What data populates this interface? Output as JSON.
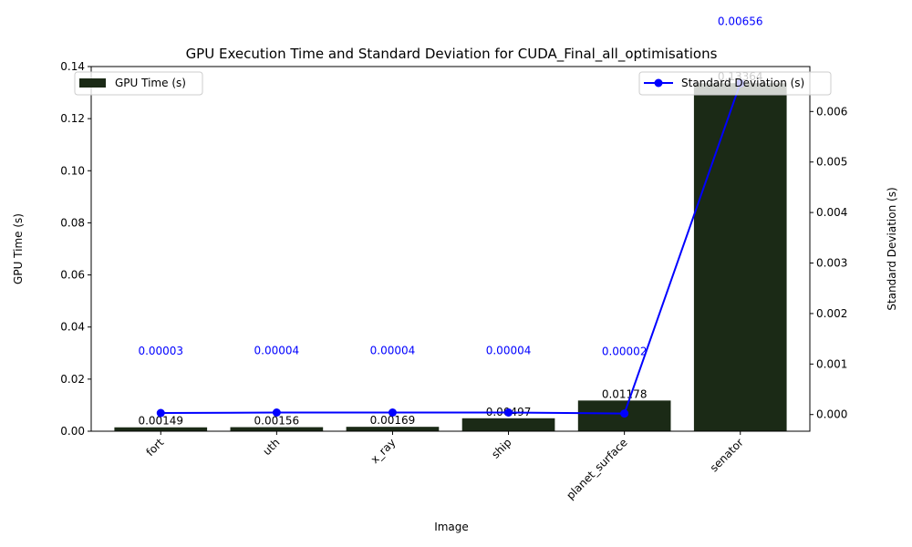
{
  "chart_data": {
    "type": "bar",
    "title": "GPU Execution Time and Standard Deviation for CUDA_Final_all_optimisations",
    "xlabel": "Image",
    "ylabel": "GPU Time (s)",
    "y2label": "Standard Deviation (s)",
    "categories": [
      "fort",
      "uth",
      "x_ray",
      "ship",
      "planet_surface",
      "senator"
    ],
    "ylim": [
      0,
      0.14
    ],
    "y2lim": [
      -0.00033,
      0.00689
    ],
    "yticks": [
      "0.00",
      "0.02",
      "0.04",
      "0.06",
      "0.08",
      "0.10",
      "0.12",
      "0.14"
    ],
    "y2ticks": [
      "0.000",
      "0.001",
      "0.002",
      "0.003",
      "0.004",
      "0.005",
      "0.006"
    ],
    "series": [
      {
        "name": "GPU Time (s)",
        "kind": "bar",
        "axis": "left",
        "color": "#1b2a16",
        "values": [
          0.00149,
          0.00156,
          0.00169,
          0.00497,
          0.01178,
          0.13364
        ],
        "labels": [
          "0.00149",
          "0.00156",
          "0.00169",
          "0.00497",
          "0.01178",
          "0.13364"
        ]
      },
      {
        "name": "Standard Deviation (s)",
        "kind": "line",
        "axis": "right",
        "color": "#0000ff",
        "values": [
          3e-05,
          4e-05,
          4e-05,
          4e-05,
          2e-05,
          0.00656
        ],
        "labels": [
          "0.00003",
          "0.00004",
          "0.00004",
          "0.00004",
          "0.00002",
          "0.00656"
        ]
      }
    ],
    "legend_left": "top-left",
    "legend_right": "top-right",
    "grid": false
  }
}
